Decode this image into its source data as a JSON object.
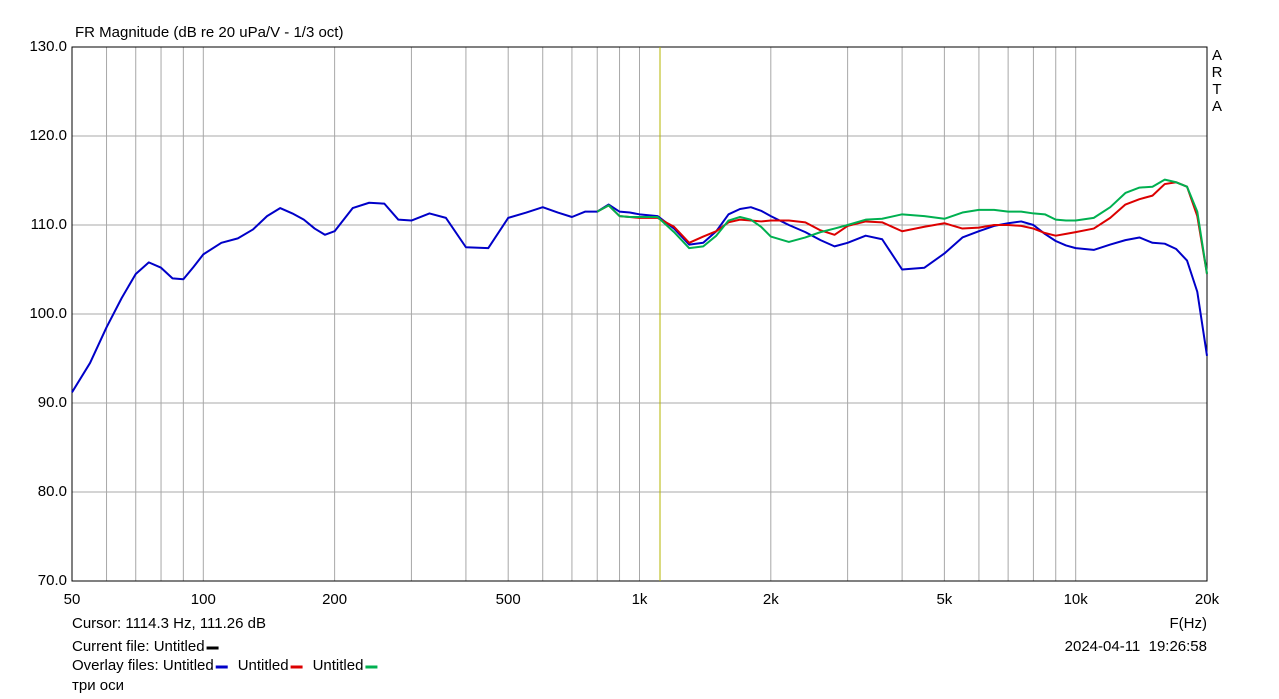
{
  "chart_data": {
    "type": "line",
    "title": "FR Magnitude (dB re 20 uPa/V - 1/3 oct)",
    "xlabel": "F(Hz)",
    "xscale": "log",
    "xlim": [
      50,
      20000
    ],
    "ylim": [
      70,
      130
    ],
    "grid": true,
    "xticks": [
      50,
      100,
      200,
      500,
      {
        "value": 1000,
        "label": "1k"
      },
      {
        "value": 2000,
        "label": "2k"
      },
      {
        "value": 5000,
        "label": "5k"
      },
      {
        "value": 10000,
        "label": "10k"
      },
      {
        "value": 20000,
        "label": "20k"
      }
    ],
    "xgrid": [
      60,
      70,
      80,
      90,
      300,
      400,
      600,
      700,
      800,
      900,
      3000,
      4000,
      6000,
      7000,
      8000,
      9000
    ],
    "yticks": [
      {
        "value": 70,
        "label": "70.0"
      },
      {
        "value": 80,
        "label": "80.0"
      },
      {
        "value": 90,
        "label": "90.0"
      },
      {
        "value": 100,
        "label": "100.0"
      },
      {
        "value": 110,
        "label": "110.0"
      },
      {
        "value": 120,
        "label": "120.0"
      },
      {
        "value": 130,
        "label": "130.0"
      }
    ],
    "x": [
      50,
      55,
      60,
      65,
      70,
      75,
      80,
      85,
      90,
      95,
      100,
      110,
      120,
      130,
      140,
      150,
      160,
      170,
      180,
      190,
      200,
      220,
      240,
      260,
      280,
      300,
      330,
      360,
      400,
      450,
      500,
      550,
      600,
      650,
      700,
      750,
      800,
      850,
      900,
      950,
      1000,
      1100,
      1200,
      1300,
      1400,
      1500,
      1600,
      1700,
      1800,
      1900,
      2000,
      2200,
      2400,
      2600,
      2800,
      3000,
      3300,
      3600,
      4000,
      4500,
      5000,
      5500,
      6000,
      6500,
      7000,
      7500,
      8000,
      8500,
      9000,
      9500,
      10000,
      11000,
      12000,
      13000,
      14000,
      15000,
      16000,
      17000,
      18000,
      19000,
      20000
    ],
    "series": [
      {
        "name": "Untitled",
        "color": "#0000c8",
        "values": [
          91.2,
          94.5,
          98.5,
          101.8,
          104.5,
          105.8,
          105.2,
          104.0,
          103.9,
          105.3,
          106.7,
          108.0,
          108.5,
          109.5,
          111.0,
          111.9,
          111.3,
          110.6,
          109.6,
          108.9,
          109.3,
          111.9,
          112.5,
          112.4,
          110.6,
          110.5,
          111.3,
          110.8,
          107.5,
          107.4,
          110.8,
          111.4,
          112.0,
          111.4,
          110.9,
          111.5,
          111.5,
          112.3,
          111.5,
          111.4,
          111.2,
          111.0,
          109.6,
          107.8,
          108.0,
          109.3,
          111.2,
          111.8,
          112.0,
          111.6,
          111.0,
          110.0,
          109.2,
          108.3,
          107.6,
          108.0,
          108.8,
          108.4,
          105.0,
          105.2,
          106.8,
          108.6,
          109.3,
          109.9,
          110.2,
          110.4,
          110.0,
          109.0,
          108.2,
          107.7,
          107.4,
          107.2,
          107.8,
          108.3,
          108.6,
          108.0,
          107.9,
          107.3,
          106.0,
          102.5,
          95.3
        ]
      },
      {
        "name": "Untitled",
        "color": "#dc0000",
        "values": [
          null,
          null,
          null,
          null,
          null,
          null,
          null,
          null,
          null,
          null,
          null,
          null,
          null,
          null,
          null,
          null,
          null,
          null,
          null,
          null,
          null,
          null,
          null,
          null,
          null,
          null,
          null,
          null,
          null,
          null,
          null,
          null,
          null,
          null,
          null,
          null,
          111.5,
          112.2,
          111.0,
          110.9,
          110.8,
          110.8,
          109.8,
          108.0,
          108.7,
          109.3,
          110.3,
          110.6,
          110.5,
          110.4,
          110.5,
          110.5,
          110.3,
          109.4,
          108.9,
          109.9,
          110.4,
          110.3,
          109.3,
          109.8,
          110.2,
          109.6,
          109.7,
          110.0,
          110.0,
          109.9,
          109.6,
          109.1,
          108.8,
          109.0,
          109.2,
          109.6,
          110.8,
          112.3,
          112.9,
          113.3,
          114.6,
          114.8,
          114.3,
          111.0,
          104.5
        ]
      },
      {
        "name": "Untitled",
        "color": "#00b050",
        "values": [
          null,
          null,
          null,
          null,
          null,
          null,
          null,
          null,
          null,
          null,
          null,
          null,
          null,
          null,
          null,
          null,
          null,
          null,
          null,
          null,
          null,
          null,
          null,
          null,
          null,
          null,
          null,
          null,
          null,
          null,
          null,
          null,
          null,
          null,
          null,
          null,
          111.5,
          112.2,
          111.0,
          110.9,
          110.9,
          110.9,
          109.2,
          107.4,
          107.6,
          108.8,
          110.5,
          110.9,
          110.6,
          109.8,
          108.7,
          108.1,
          108.6,
          109.2,
          109.6,
          110.0,
          110.6,
          110.7,
          111.2,
          111.0,
          110.7,
          111.4,
          111.7,
          111.7,
          111.5,
          111.5,
          111.3,
          111.2,
          110.6,
          110.5,
          110.5,
          110.8,
          112.0,
          113.6,
          114.2,
          114.3,
          115.1,
          114.8,
          114.3,
          111.5,
          104.5
        ]
      }
    ],
    "cursor": {
      "label": "Cursor: 1114.3 Hz, 111.26 dB",
      "x": 1114.3,
      "color": "#b4b400"
    },
    "watermark": [
      "A",
      "R",
      "T",
      "A"
    ],
    "current_file": {
      "label": "Current file: Untitled",
      "color": "#000000"
    },
    "overlay_label": "Overlay files: ",
    "note": "три оси",
    "timestamp": "2024-04-11  19:26:58"
  }
}
